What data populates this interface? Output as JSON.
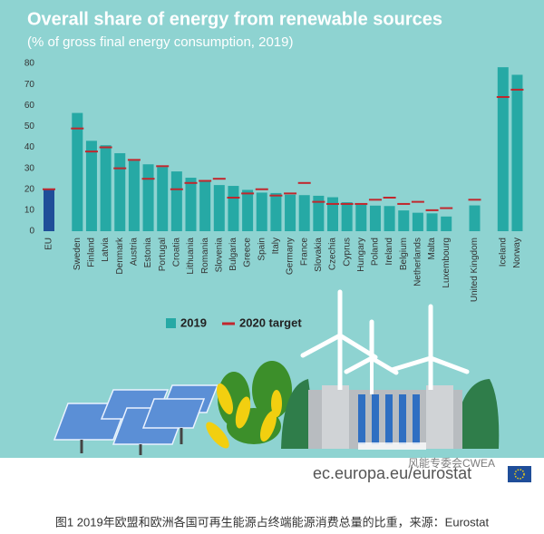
{
  "chart_data": {
    "type": "bar",
    "title": "Overall share of energy from renewable sources",
    "subtitle": "(% of gross final energy consumption, 2019)",
    "categories": [
      "EU",
      "Sweden",
      "Finland",
      "Latvia",
      "Denmark",
      "Austria",
      "Estonia",
      "Portugal",
      "Croatia",
      "Lithuania",
      "Romania",
      "Slovenia",
      "Bulgaria",
      "Greece",
      "Spain",
      "Italy",
      "Germany",
      "France",
      "Slovakia",
      "Czechia",
      "Cyprus",
      "Hungary",
      "Poland",
      "Ireland",
      "Belgium",
      "Netherlands",
      "Malta",
      "Luxembourg",
      "United Kingdom",
      "Iceland",
      "Norway"
    ],
    "series": [
      {
        "name": "2019",
        "color": "#26a9a5",
        "mark": "bar",
        "values": [
          19.7,
          56.4,
          43.1,
          41.0,
          37.2,
          33.6,
          31.9,
          30.6,
          28.5,
          25.5,
          24.3,
          22.0,
          21.6,
          19.7,
          18.4,
          18.2,
          17.4,
          17.2,
          16.9,
          16.2,
          13.8,
          12.6,
          12.2,
          12.0,
          9.9,
          8.8,
          8.5,
          7.0,
          12.3,
          78.2,
          74.6
        ]
      },
      {
        "name": "2020 target",
        "color": "#c1272d",
        "mark": "line",
        "values": [
          20,
          49,
          38,
          40,
          30,
          34,
          25,
          31,
          20,
          23,
          24,
          25,
          16,
          18,
          20,
          17,
          18,
          23,
          14,
          13,
          13,
          13,
          15,
          16,
          13,
          14,
          10,
          11,
          15,
          64,
          67.5
        ]
      }
    ],
    "highlight": {
      "categories": [
        "EU"
      ],
      "color": "#1f4e99"
    },
    "ylim": [
      0,
      80
    ],
    "yticks": [
      0,
      10,
      20,
      30,
      40,
      50,
      60,
      70,
      80
    ],
    "grid": false,
    "source": "ec.europa.eu/eurostat",
    "watermark": "风能专委会CWEA",
    "caption": "图1 2019年欧盟和欧洲各国可再生能源占终端能源消费总量的比重，来源：Eurostat"
  }
}
